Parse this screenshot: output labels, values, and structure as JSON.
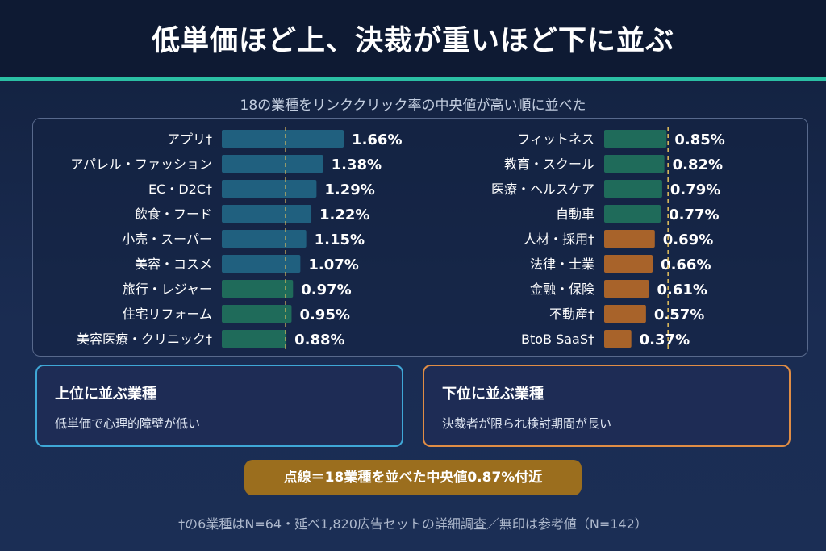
{
  "header": {
    "title": "低単価ほど上、決裁が重いほど下に並ぶ",
    "subtitle": "18の業種をリンククリック率の中央値が高い順に並べた"
  },
  "colors": {
    "blue": "#20607f",
    "teal": "#1f6b5a",
    "orange": "#a8632a",
    "median_line": "#e6c35c"
  },
  "chart_data": {
    "type": "bar",
    "orientation": "horizontal",
    "unit": "%",
    "median": 0.87,
    "columns": [
      {
        "categories": [
          "アプリ†",
          "アパレル・ファッション",
          "EC・D2C†",
          "飲食・フード",
          "小売・スーパー",
          "美容・コスメ",
          "旅行・レジャー",
          "住宅リフォーム",
          "美容医療・クリニック†"
        ],
        "values": [
          1.66,
          1.38,
          1.29,
          1.22,
          1.15,
          1.07,
          0.97,
          0.95,
          0.88
        ],
        "labels": [
          "1.66%",
          "1.38%",
          "1.29%",
          "1.22%",
          "1.15%",
          "1.07%",
          "0.97%",
          "0.95%",
          "0.88%"
        ],
        "colors": [
          "blue",
          "blue",
          "blue",
          "blue",
          "blue",
          "blue",
          "teal",
          "teal",
          "teal"
        ]
      },
      {
        "categories": [
          "フィットネス",
          "教育・スクール",
          "医療・ヘルスケア",
          "自動車",
          "人材・採用†",
          "法律・士業",
          "金融・保険",
          "不動産†",
          "BtoB SaaS†"
        ],
        "values": [
          0.85,
          0.82,
          0.79,
          0.77,
          0.69,
          0.66,
          0.61,
          0.57,
          0.37
        ],
        "labels": [
          "0.85%",
          "0.82%",
          "0.79%",
          "0.77%",
          "0.69%",
          "0.66%",
          "0.61%",
          "0.57%",
          "0.37%"
        ],
        "colors": [
          "teal",
          "teal",
          "teal",
          "teal",
          "orange",
          "orange",
          "orange",
          "orange",
          "orange"
        ]
      }
    ]
  },
  "boxes": {
    "top": {
      "title": "上位に並ぶ業種",
      "body": "低単価で心理的障壁が低い"
    },
    "bottom": {
      "title": "下位に並ぶ業種",
      "body": "決裁者が限られ検討期間が長い"
    }
  },
  "median_note": "点線＝18業種を並べた中央値0.87%付近",
  "footnote": "†の6業種はN=64・延べ1,820広告セットの詳細調査／無印は参考値（N=142）"
}
